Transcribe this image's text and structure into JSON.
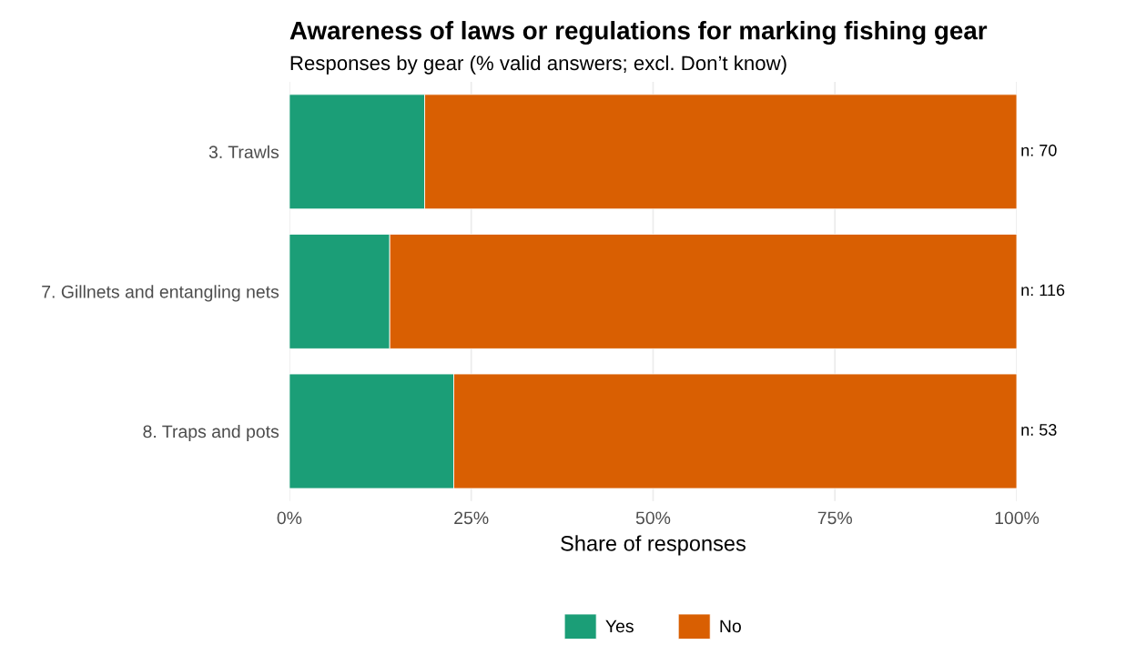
{
  "chart_data": {
    "type": "bar",
    "orientation": "horizontal",
    "stacked": true,
    "title": "Awareness of laws or regulations for marking fishing gear",
    "subtitle": "Responses by gear (% valid answers; excl. Don’t know)",
    "xlabel": "Share of responses",
    "categories": [
      "3. Trawls",
      "7. Gillnets and entangling nets",
      "8. Traps and pots"
    ],
    "series": [
      {
        "name": "Yes",
        "color": "#1b9e77",
        "values": [
          18.6,
          13.8,
          22.6
        ]
      },
      {
        "name": "No",
        "color": "#d95f02",
        "values": [
          81.4,
          86.2,
          77.4
        ]
      }
    ],
    "xlim": [
      0,
      100
    ],
    "xticks": [
      {
        "value": 0,
        "label": "0%"
      },
      {
        "value": 25,
        "label": "25%"
      },
      {
        "value": 50,
        "label": "50%"
      },
      {
        "value": 75,
        "label": "75%"
      },
      {
        "value": 100,
        "label": "100%"
      }
    ],
    "annotations": [
      "n: 70",
      "n: 116",
      "n: 53"
    ],
    "grid": "x",
    "legend": "bottom"
  }
}
